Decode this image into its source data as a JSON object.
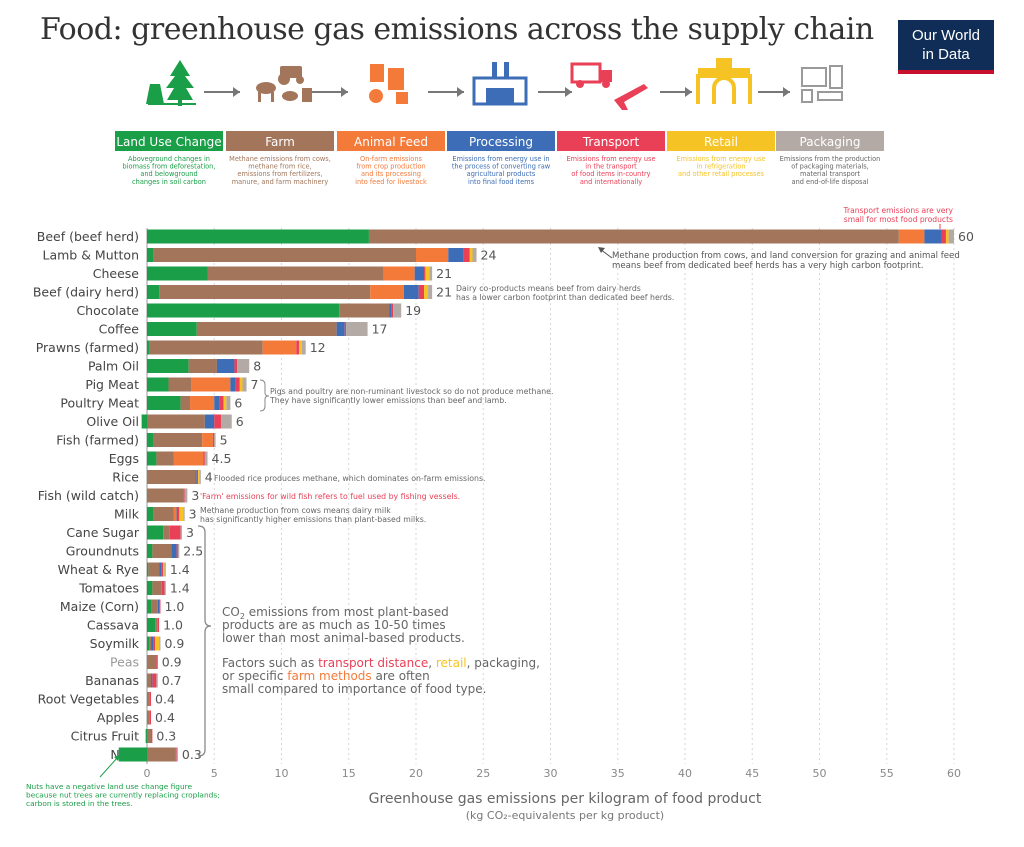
{
  "title": "Food: greenhouse gas emissions across the supply chain",
  "logo": {
    "line1": "Our World",
    "line2": "in Data"
  },
  "colors": {
    "Land Use Change": "#1a9e47",
    "Farm": "#a3765c",
    "Animal Feed": "#f47a3a",
    "Processing": "#3c6db6",
    "Transport": "#e94057",
    "Retail": "#f6c324",
    "Packaging": "#b3aaa6"
  },
  "stages": [
    {
      "name": "Land Use Change",
      "icon": "trees-icon",
      "desc": [
        "Aboveground changes in",
        "biomass from deforestation,",
        "and belowground",
        "changes in soil carbon"
      ]
    },
    {
      "name": "Farm",
      "icon": "farm-animals-icon",
      "desc": [
        "Methane emissions from cows,",
        "methane from rice,",
        "emissions from fertilizers,",
        "manure, and farm machinery"
      ]
    },
    {
      "name": "Animal Feed",
      "icon": "feed-mill-icon",
      "desc": [
        "On-farm emissions",
        "from crop production",
        "and its processing",
        "into feed for livestock"
      ]
    },
    {
      "name": "Processing",
      "icon": "factory-icon",
      "desc": [
        "Emissions from energy use in",
        "the process of converting raw",
        "agricultural products",
        "into final food items"
      ]
    },
    {
      "name": "Transport",
      "icon": "truck-plane-icon",
      "desc": [
        "Emissions from energy use",
        "in the transport",
        "of food items in-country",
        "and internationally"
      ]
    },
    {
      "name": "Retail",
      "icon": "shop-icon",
      "desc": [
        "Emissions from energy use",
        "in refrigeration",
        "and other retail processes"
      ]
    },
    {
      "name": "Packaging",
      "icon": "packages-icon",
      "desc": [
        "Emissions from the production",
        "of packaging materials,",
        "material transport",
        "and end-of-life disposal"
      ]
    }
  ],
  "chart_data": {
    "type": "bar",
    "orientation": "horizontal",
    "stacked": true,
    "xlabel": "Greenhouse gas emissions per kilogram of food product",
    "xlabel_sub": "(kg CO₂-equivalents per kg product)",
    "xlim": [
      0,
      60
    ],
    "xticks": [
      0,
      5,
      10,
      15,
      20,
      25,
      30,
      35,
      40,
      45,
      50,
      55,
      60
    ],
    "grid": "vertical dotted",
    "series_names": [
      "Land Use Change",
      "Farm",
      "Animal Feed",
      "Processing",
      "Transport",
      "Retail",
      "Packaging"
    ],
    "foods": [
      {
        "name": "Beef (beef herd)",
        "total": "60",
        "values": [
          16.5,
          39.4,
          1.9,
          1.3,
          0.3,
          0.2,
          0.4
        ]
      },
      {
        "name": "Lamb & Mutton",
        "total": "24",
        "values": [
          0.5,
          19.5,
          2.4,
          1.1,
          0.5,
          0.2,
          0.3
        ]
      },
      {
        "name": "Cheese",
        "total": "21",
        "values": [
          4.5,
          13.1,
          2.3,
          0.7,
          0.1,
          0.3,
          0.2
        ]
      },
      {
        "name": "Beef (dairy herd)",
        "total": "21",
        "values": [
          0.9,
          15.7,
          2.5,
          1.1,
          0.4,
          0.3,
          0.3
        ]
      },
      {
        "name": "Chocolate",
        "total": "19",
        "values": [
          14.3,
          3.7,
          0,
          0.2,
          0.1,
          0,
          0.6
        ]
      },
      {
        "name": "Coffee",
        "total": "17",
        "values": [
          3.7,
          10.4,
          0,
          0.6,
          0.1,
          0,
          1.6
        ]
      },
      {
        "name": "Prawns (farmed)",
        "total": "12",
        "values": [
          0.2,
          8.4,
          2.5,
          0,
          0.2,
          0.2,
          0.3
        ]
      },
      {
        "name": "Palm Oil",
        "total": "8",
        "values": [
          3.1,
          2.1,
          0,
          1.3,
          0.2,
          0,
          0.9
        ]
      },
      {
        "name": "Pig Meat",
        "total": "7",
        "values": [
          1.6,
          1.7,
          2.9,
          0.4,
          0.3,
          0.2,
          0.3
        ]
      },
      {
        "name": "Poultry Meat",
        "total": "6",
        "values": [
          2.5,
          0.7,
          1.8,
          0.4,
          0.3,
          0.2,
          0.3
        ]
      },
      {
        "name": "Olive Oil",
        "total": "6",
        "values": [
          -0.4,
          4.3,
          0,
          0.7,
          0.5,
          0,
          0.8
        ]
      },
      {
        "name": "Fish (farmed)",
        "total": "5",
        "values": [
          0.5,
          3.6,
          0.8,
          0,
          0.1,
          0,
          0.1
        ]
      },
      {
        "name": "Eggs",
        "total": "4.5",
        "values": [
          0.7,
          1.3,
          2.2,
          0,
          0.1,
          0,
          0.2
        ]
      },
      {
        "name": "Rice",
        "total": "4",
        "values": [
          0,
          3.6,
          0,
          0.1,
          0.1,
          0.1,
          0.1
        ]
      },
      {
        "name": "Fish (wild catch)",
        "total": "3",
        "values": [
          0,
          2.7,
          0,
          0,
          0.1,
          0,
          0.2
        ]
      },
      {
        "name": "Milk",
        "total": "3",
        "values": [
          0.5,
          1.5,
          0.2,
          0.1,
          0.1,
          0.3,
          0.1
        ]
      },
      {
        "name": "Cane Sugar",
        "total": "3",
        "values": [
          1.2,
          0.5,
          0,
          0,
          0.8,
          0,
          0.1
        ]
      },
      {
        "name": "Groundnuts",
        "total": "2.5",
        "values": [
          0.4,
          1.4,
          0,
          0.4,
          0.1,
          0,
          0.1
        ]
      },
      {
        "name": "Wheat & Rye",
        "total": "1.4",
        "values": [
          0.1,
          0.8,
          0,
          0.2,
          0.1,
          0.1,
          0.1
        ]
      },
      {
        "name": "Tomatoes",
        "total": "1.4",
        "values": [
          0.4,
          0.7,
          0,
          0,
          0.2,
          0,
          0.1
        ]
      },
      {
        "name": "Maize (Corn)",
        "total": "1.0",
        "values": [
          0.3,
          0.5,
          0,
          0.1,
          0.1,
          0,
          0
        ]
      },
      {
        "name": "Cassava",
        "total": "1.0",
        "values": [
          0.6,
          0.2,
          0,
          0,
          0.1,
          0,
          0
        ]
      },
      {
        "name": "Soymilk",
        "total": "0.9",
        "values": [
          0.2,
          0.1,
          0,
          0.2,
          0.1,
          0.3,
          0.1
        ]
      },
      {
        "name": "Peas",
        "total": "0.9",
        "values": [
          0,
          0.7,
          0,
          0,
          0.1,
          0,
          0
        ]
      },
      {
        "name": "Bananas",
        "total": "0.7",
        "values": [
          0,
          0.3,
          0,
          0.1,
          0.3,
          0,
          0.1
        ]
      },
      {
        "name": "Root Vegetables",
        "total": "0.4",
        "values": [
          0,
          0.2,
          0,
          0,
          0.1,
          0,
          0
        ]
      },
      {
        "name": "Apples",
        "total": "0.4",
        "values": [
          0,
          0.2,
          0,
          0,
          0.1,
          0,
          0
        ]
      },
      {
        "name": "Citrus Fruit",
        "total": "0.3",
        "values": [
          -0.1,
          0.3,
          0,
          0,
          0.1,
          0,
          0
        ]
      },
      {
        "name": "Nuts",
        "total": "0.3",
        "values": [
          -2.1,
          2.1,
          0,
          0,
          0.1,
          0,
          0.1
        ]
      }
    ]
  },
  "annotations": {
    "transport_top": [
      "Transport emissions are very",
      "small for most food products"
    ],
    "beef": [
      "Methane production from cows, and land conversion for grazing and animal feed",
      "means beef from dedicated beef herds has a very high carbon footprint."
    ],
    "dairy_beef": [
      "Dairy co-products means beef from dairy herds",
      "has a lower carbon footprint than dedicated beef herds."
    ],
    "pig_poultry": [
      "Pigs and poultry are non-ruminant livestock so do not produce methane.",
      "They have significantly lower emissions than beef and lamb."
    ],
    "rice": "Flooded rice produces methane, which dominates on-farm emissions.",
    "fish_wild": "'Farm' emissions for wild fish refers to fuel used by fishing vessels.",
    "milk": [
      "Methane production from cows means dairy milk",
      "has significantly higher emissions than plant-based milks."
    ],
    "plant_1": [
      "products are as much as 10-50 times",
      "lower than most animal-based products."
    ],
    "plant_1_prefix": "CO",
    "plant_1_sub": "2",
    "plant_1_suffix": " emissions from most plant-based",
    "plant_2_line1": [
      "Factors such as ",
      "transport distance",
      ", ",
      "retail",
      ", packaging,"
    ],
    "plant_2_line2": [
      "or specific ",
      "farm methods",
      " are often"
    ],
    "plant_2_line3": "small compared to importance of food type.",
    "nuts": [
      "Nuts have a negative land use change figure",
      "because nut trees are currently replacing croplands;",
      "carbon is stored in the trees."
    ]
  }
}
